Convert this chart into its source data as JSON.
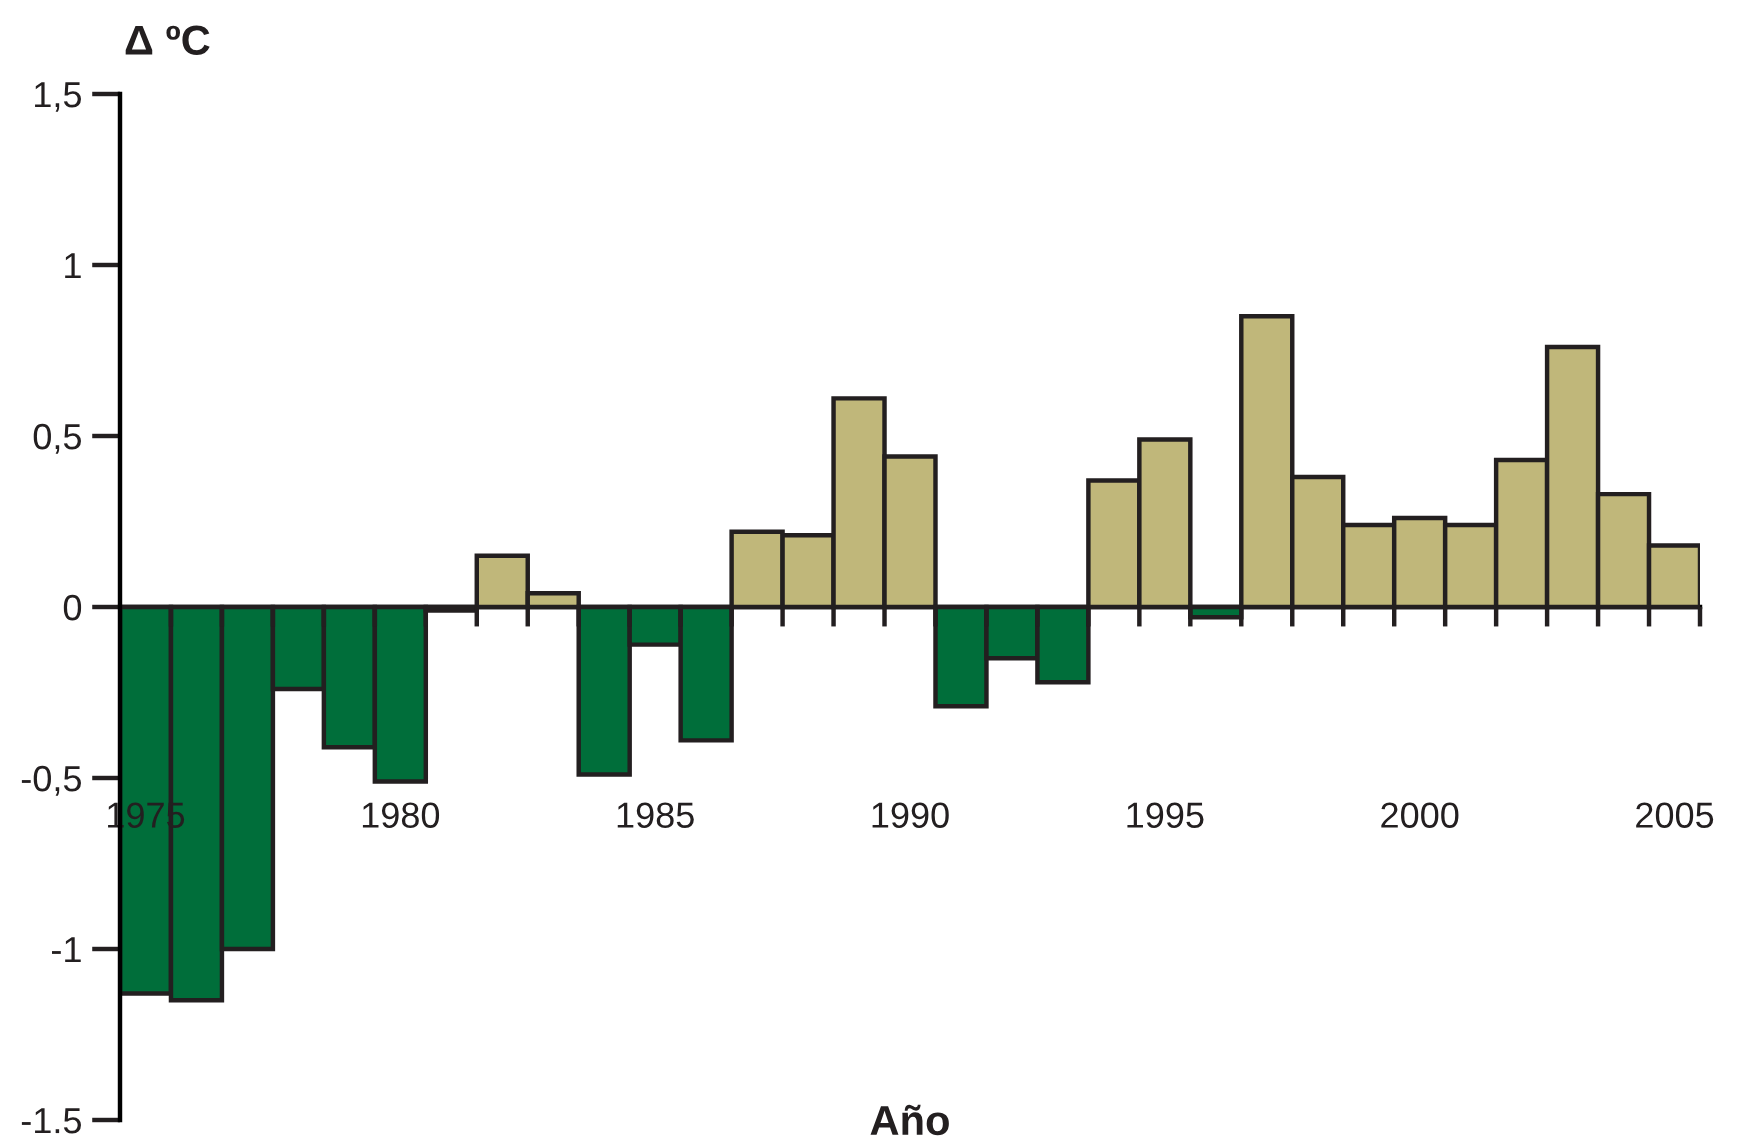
{
  "chart_data": {
    "type": "bar",
    "ylabel": "Δ ºC",
    "xlabel": "Año",
    "categories": [
      "1975",
      null,
      null,
      null,
      null,
      "1980",
      null,
      null,
      null,
      null,
      "1985",
      null,
      null,
      null,
      null,
      "1990",
      null,
      null,
      null,
      null,
      "1995",
      null,
      null,
      null,
      null,
      "2000",
      null,
      null,
      null,
      null,
      "2005"
    ],
    "values": [
      -1.13,
      -1.15,
      -1.0,
      -0.24,
      -0.41,
      -0.51,
      -0.01,
      0.15,
      0.04,
      -0.49,
      -0.11,
      -0.39,
      0.22,
      0.21,
      0.61,
      0.44,
      -0.29,
      -0.15,
      -0.22,
      0.37,
      0.49,
      -0.03,
      0.85,
      0.38,
      0.24,
      0.26,
      0.24,
      0.43,
      0.76,
      0.33,
      0.18
    ],
    "colors": [
      "#006e3a",
      "#006e3a",
      "#006e3a",
      "#006e3a",
      "#006e3a",
      "#006e3a",
      "#006e3a",
      "#c0b77a",
      "#c0b77a",
      "#006e3a",
      "#006e3a",
      "#006e3a",
      "#c0b77a",
      "#c0b77a",
      "#c0b77a",
      "#c0b77a",
      "#006e3a",
      "#006e3a",
      "#006e3a",
      "#c0b77a",
      "#c0b77a",
      "#006e3a",
      "#c0b77a",
      "#c0b77a",
      "#c0b77a",
      "#c0b77a",
      "#c0b77a",
      "#c0b77a",
      "#c0b77a",
      "#c0b77a",
      "#c0b77a"
    ],
    "ylim": [
      -1.5,
      1.5
    ],
    "yticks": [
      {
        "value": -1.5,
        "label": "-1.5"
      },
      {
        "value": -1,
        "label": "-1"
      },
      {
        "value": -0.5,
        "label": "-0,5"
      },
      0,
      {
        "value": 0.5,
        "label": "0,5"
      },
      1,
      {
        "value": 1.5,
        "label": "1,5"
      }
    ],
    "legend": false
  }
}
